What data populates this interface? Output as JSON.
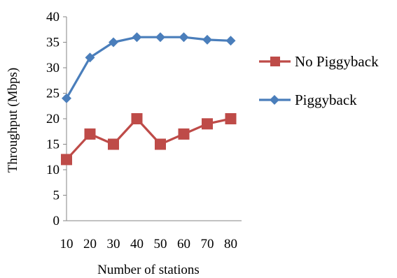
{
  "chart_data": {
    "type": "line",
    "title": "",
    "xlabel": "Number of stations",
    "ylabel": "Throughput (Mbps)",
    "x": [
      10,
      20,
      30,
      40,
      50,
      60,
      70,
      80
    ],
    "x_tick_labels": [
      "10",
      "20",
      "30",
      "40",
      "50",
      "60",
      "70",
      "80"
    ],
    "y_tick_labels": [
      "0",
      "5",
      "10",
      "15",
      "20",
      "25",
      "30",
      "35",
      "40"
    ],
    "ylim": [
      0,
      40
    ],
    "grid": false,
    "legend_position": "right",
    "series": [
      {
        "name": "No Piggyback",
        "values": [
          12,
          17,
          15,
          20,
          15,
          17,
          19,
          20
        ],
        "color": "#BE4B48",
        "marker": "square"
      },
      {
        "name": "Piggyback",
        "values": [
          24,
          32,
          35,
          36,
          36,
          36,
          35.5,
          35.3
        ],
        "color": "#4A7EBB",
        "marker": "diamond"
      }
    ]
  }
}
